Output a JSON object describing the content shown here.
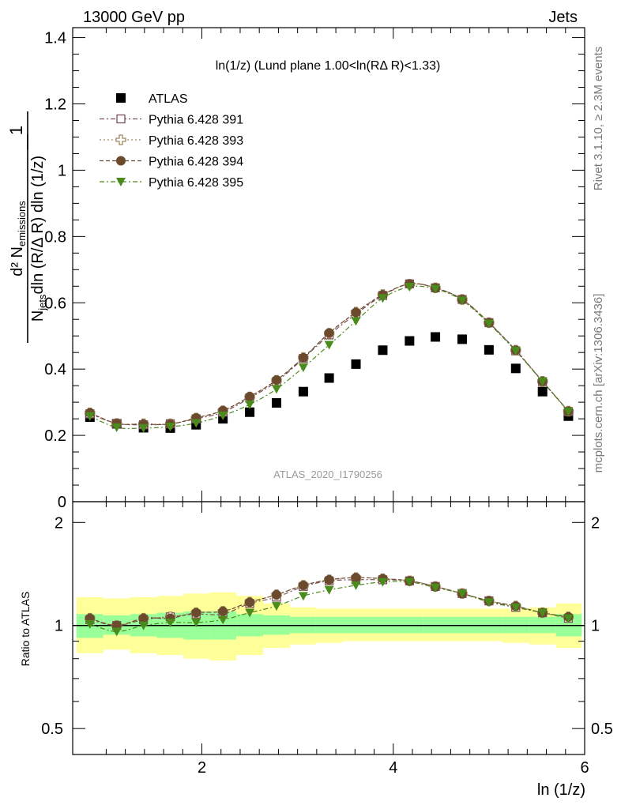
{
  "header": {
    "left": "13000 GeV pp",
    "right": "Jets"
  },
  "side_labels": {
    "rivet": "Rivet 3.1.10, ≥ 2.3M events",
    "mcplots": "mcplots.cern.ch [arXiv:1306.3436]"
  },
  "watermark": "ATLAS_2020_I1790256",
  "chart_data": [
    {
      "type": "scatter",
      "panel": "main",
      "title": "ln(1/z) (Lund plane 1.00<ln(RΔ R)<1.33)",
      "ylabel": "1/N_jets d²N_emissions / dln(R/ΔR) dln(1/z)",
      "xlabel": "ln (1/z)",
      "xlim": [
        0.65,
        6.0
      ],
      "ylim": [
        0,
        1.43
      ],
      "yticks": [
        "0",
        "0.2",
        "0.4",
        "0.6",
        "0.8",
        "1",
        "1.2",
        "1.4"
      ],
      "xticks": [
        "2",
        "4",
        "6"
      ],
      "legend_position": "top-left",
      "x": [
        0.83,
        1.11,
        1.39,
        1.67,
        1.94,
        2.22,
        2.5,
        2.78,
        3.06,
        3.33,
        3.61,
        3.89,
        4.17,
        4.44,
        4.72,
        5.0,
        5.28,
        5.56,
        5.83
      ],
      "series": [
        {
          "name": "ATLAS",
          "color": "#000000",
          "marker": "square-filled",
          "values": [
            0.255,
            0.235,
            0.223,
            0.222,
            0.232,
            0.25,
            0.27,
            0.298,
            0.332,
            0.373,
            0.415,
            0.457,
            0.485,
            0.497,
            0.49,
            0.458,
            0.402,
            0.332,
            0.258
          ]
        },
        {
          "name": "Pythia 6.428 391",
          "color": "#7b4e5a",
          "marker": "square-open",
          "dash": "6,3,2,3",
          "values": [
            0.265,
            0.236,
            0.232,
            0.235,
            0.25,
            0.27,
            0.313,
            0.362,
            0.432,
            0.503,
            0.566,
            0.622,
            0.657,
            0.645,
            0.61,
            0.54,
            0.455,
            0.362,
            0.272
          ]
        },
        {
          "name": "Pythia 6.428 393",
          "color": "#a08860",
          "marker": "plus-open",
          "dash": "2,3",
          "values": [
            0.268,
            0.236,
            0.235,
            0.235,
            0.252,
            0.274,
            0.316,
            0.366,
            0.435,
            0.508,
            0.572,
            0.625,
            0.656,
            0.645,
            0.61,
            0.54,
            0.457,
            0.363,
            0.273
          ]
        },
        {
          "name": "Pythia 6.428 394",
          "color": "#6b4a2e",
          "marker": "circle-filled",
          "dash": "5,3",
          "values": [
            0.268,
            0.236,
            0.234,
            0.234,
            0.253,
            0.275,
            0.317,
            0.367,
            0.434,
            0.509,
            0.571,
            0.624,
            0.657,
            0.645,
            0.61,
            0.54,
            0.457,
            0.363,
            0.273
          ]
        },
        {
          "name": "Pythia 6.428 395",
          "color": "#4a8c1c",
          "marker": "triangle-down-filled",
          "dash": "6,3,2,3",
          "values": [
            0.258,
            0.224,
            0.222,
            0.226,
            0.237,
            0.26,
            0.293,
            0.34,
            0.405,
            0.473,
            0.545,
            0.614,
            0.648,
            0.642,
            0.607,
            0.537,
            0.455,
            0.363,
            0.272
          ]
        }
      ]
    },
    {
      "type": "scatter",
      "panel": "ratio",
      "ylabel": "Ratio to ATLAS",
      "yscale": "log",
      "ylim": [
        0.42,
        2.3
      ],
      "yticks": [
        "0.5",
        "1",
        "2"
      ],
      "reference_line": 1,
      "band_colors": {
        "stat": "#99ff99",
        "total": "#ffff99"
      },
      "x_edges": [
        0.69,
        0.97,
        1.25,
        1.53,
        1.81,
        2.08,
        2.36,
        2.64,
        2.92,
        3.19,
        3.47,
        3.75,
        4.03,
        4.31,
        4.58,
        4.86,
        5.14,
        5.42,
        5.7,
        5.97
      ],
      "band_stat": {
        "low": [
          0.92,
          0.94,
          0.93,
          0.92,
          0.91,
          0.91,
          0.93,
          0.94,
          0.95,
          0.95,
          0.95,
          0.95,
          0.95,
          0.95,
          0.95,
          0.95,
          0.95,
          0.95,
          0.93
        ],
        "high": [
          1.08,
          1.07,
          1.08,
          1.09,
          1.1,
          1.1,
          1.08,
          1.07,
          1.06,
          1.06,
          1.06,
          1.06,
          1.06,
          1.06,
          1.06,
          1.06,
          1.06,
          1.06,
          1.08
        ]
      },
      "band_total": {
        "low": [
          0.83,
          0.85,
          0.83,
          0.82,
          0.8,
          0.79,
          0.82,
          0.86,
          0.88,
          0.89,
          0.9,
          0.9,
          0.9,
          0.9,
          0.9,
          0.9,
          0.89,
          0.88,
          0.86
        ],
        "high": [
          1.21,
          1.2,
          1.21,
          1.22,
          1.24,
          1.25,
          1.22,
          1.16,
          1.13,
          1.12,
          1.12,
          1.12,
          1.12,
          1.12,
          1.12,
          1.12,
          1.12,
          1.13,
          1.16
        ]
      },
      "x": [
        0.83,
        1.11,
        1.39,
        1.67,
        1.94,
        2.22,
        2.5,
        2.78,
        3.06,
        3.33,
        3.61,
        3.89,
        4.17,
        4.44,
        4.72,
        5.0,
        5.28,
        5.56,
        5.83
      ],
      "series": [
        {
          "name": "Pythia 6.428 391",
          "values": [
            1.04,
            1.0,
            1.04,
            1.06,
            1.08,
            1.08,
            1.16,
            1.21,
            1.3,
            1.35,
            1.36,
            1.36,
            1.35,
            1.3,
            1.24,
            1.18,
            1.13,
            1.09,
            1.05
          ]
        },
        {
          "name": "Pythia 6.428 393",
          "values": [
            1.05,
            1.0,
            1.05,
            1.06,
            1.09,
            1.1,
            1.17,
            1.23,
            1.31,
            1.36,
            1.38,
            1.37,
            1.35,
            1.3,
            1.24,
            1.18,
            1.14,
            1.09,
            1.06
          ]
        },
        {
          "name": "Pythia 6.428 394",
          "values": [
            1.05,
            1.0,
            1.05,
            1.05,
            1.09,
            1.1,
            1.17,
            1.23,
            1.31,
            1.36,
            1.38,
            1.37,
            1.35,
            1.3,
            1.24,
            1.18,
            1.14,
            1.09,
            1.06
          ]
        },
        {
          "name": "Pythia 6.428 395",
          "values": [
            1.01,
            0.96,
            1.0,
            1.02,
            1.02,
            1.04,
            1.09,
            1.14,
            1.22,
            1.27,
            1.31,
            1.34,
            1.34,
            1.29,
            1.24,
            1.17,
            1.13,
            1.09,
            1.05
          ]
        }
      ]
    }
  ]
}
